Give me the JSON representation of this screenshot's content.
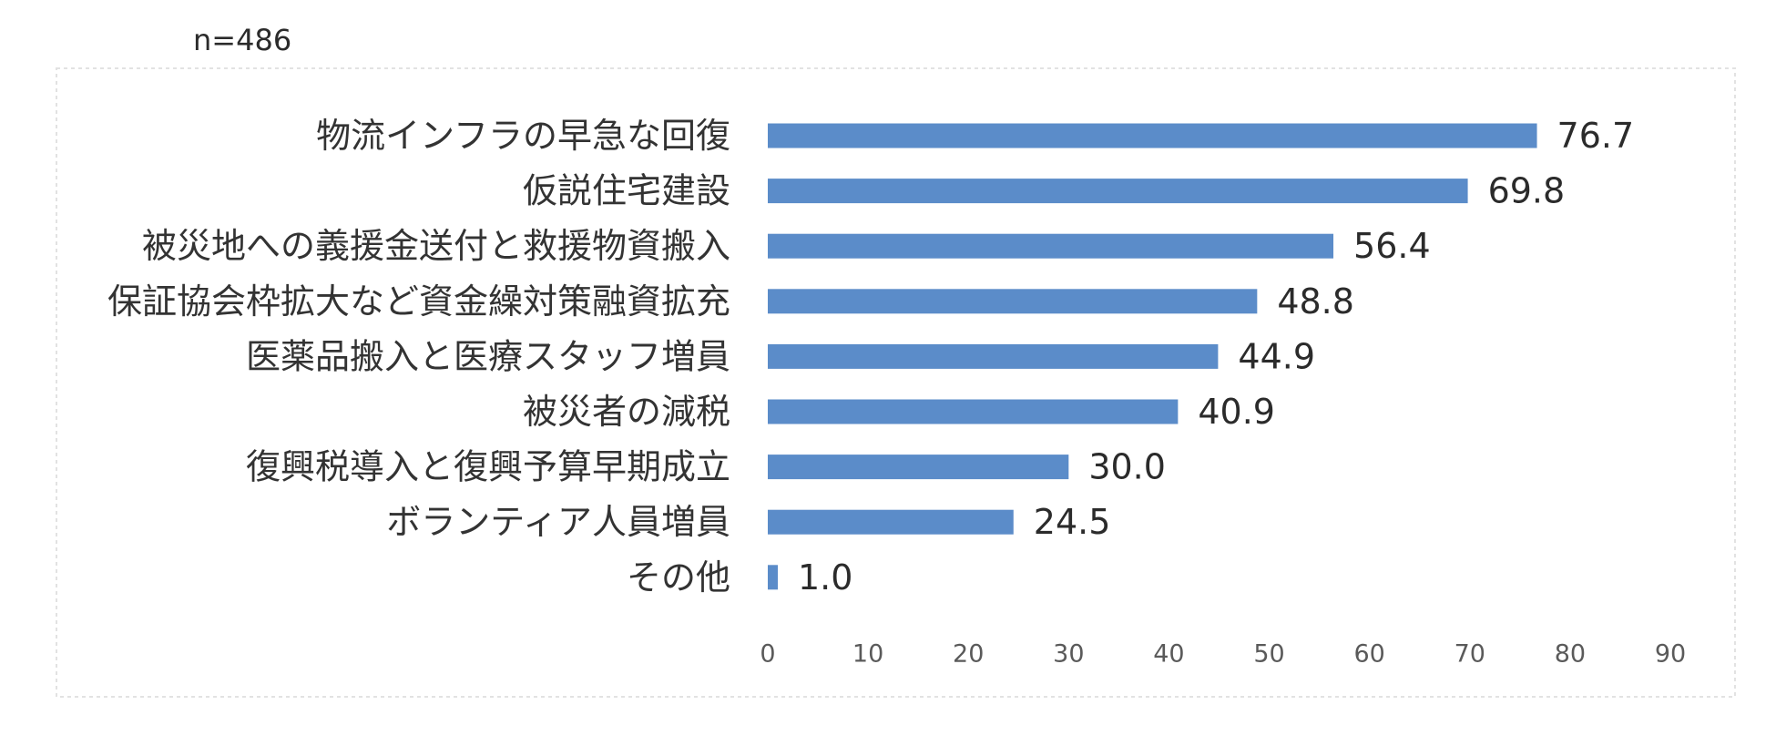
{
  "chart_data": {
    "type": "bar",
    "orientation": "horizontal",
    "note": "n=486",
    "title": "",
    "xlabel": "",
    "ylabel": "",
    "categories": [
      "物流インフラの早急な回復",
      "仮説住宅建設",
      "被災地への義援金送付と救援物資搬入",
      "保証協会枠拡大など資金繰対策融資拡充",
      "医薬品搬入と医療スタッフ増員",
      "被災者の減税",
      "復興税導入と復興予算早期成立",
      "ボランティア人員増員",
      "その他"
    ],
    "values": [
      76.7,
      69.8,
      56.4,
      48.8,
      44.9,
      40.9,
      30.0,
      24.5,
      1.0
    ],
    "xlim": [
      0,
      90
    ],
    "xticks": [
      0,
      10,
      20,
      30,
      40,
      50,
      60,
      70,
      80,
      90
    ],
    "grid": false,
    "legend": "none",
    "bar_color": "#5b8cc9",
    "frame_color": "#e2e2e2"
  }
}
